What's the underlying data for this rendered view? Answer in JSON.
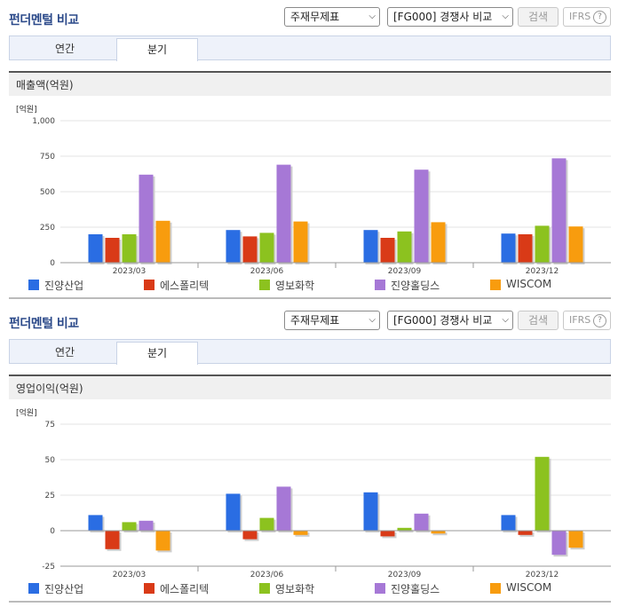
{
  "panels": [
    {
      "title": "펀더멘털 비교",
      "select1": "주재무제표",
      "select2": "[FG000] 경쟁사 비교",
      "search_label": "검색",
      "ifrs_label": "IFRS",
      "tabs": [
        "연간",
        "분기"
      ],
      "active_tab": "분기",
      "subtitle": "매출액(억원)"
    },
    {
      "title": "펀더멘털 비교",
      "select1": "주재무제표",
      "select2": "[FG000] 경쟁사 비교",
      "search_label": "검색",
      "ifrs_label": "IFRS",
      "tabs": [
        "연간",
        "분기"
      ],
      "active_tab": "분기",
      "subtitle": "영업이익(억원)"
    }
  ],
  "colors": {
    "진양산업": "#2a6de3",
    "에스폴리텍": "#d93a17",
    "영보화학": "#8cc21f",
    "진양홀딩스": "#a678d6",
    "WISCOM": "#f89c0e"
  },
  "chart_data": [
    {
      "type": "bar",
      "unit_label": "[억원]",
      "categories": [
        "2023/03",
        "2023/06",
        "2023/09",
        "2023/12"
      ],
      "ylim": [
        0,
        1000
      ],
      "yticks": [
        0,
        250,
        500,
        750,
        1000
      ],
      "ytick_labels": [
        "0",
        "250",
        "500",
        "750",
        "1,000"
      ],
      "legend_position": "bottom",
      "series": [
        {
          "name": "진양산업",
          "values": [
            200,
            230,
            230,
            205
          ]
        },
        {
          "name": "에스폴리텍",
          "values": [
            175,
            185,
            175,
            200
          ]
        },
        {
          "name": "영보화학",
          "values": [
            200,
            210,
            220,
            260
          ]
        },
        {
          "name": "진양홀딩스",
          "values": [
            620,
            690,
            655,
            735
          ]
        },
        {
          "name": "WISCOM",
          "values": [
            295,
            290,
            285,
            255
          ]
        }
      ]
    },
    {
      "type": "bar",
      "unit_label": "[억원]",
      "categories": [
        "2023/03",
        "2023/06",
        "2023/09",
        "2023/12"
      ],
      "ylim": [
        -25,
        75
      ],
      "yticks": [
        -25,
        0,
        25,
        50,
        75
      ],
      "ytick_labels": [
        "-25",
        "0",
        "25",
        "50",
        "75"
      ],
      "legend_position": "bottom",
      "series": [
        {
          "name": "진양산업",
          "values": [
            11,
            26,
            27,
            11
          ]
        },
        {
          "name": "에스폴리텍",
          "values": [
            -13,
            -6,
            -4,
            -3
          ]
        },
        {
          "name": "영보화학",
          "values": [
            6,
            9,
            2,
            52
          ]
        },
        {
          "name": "진양홀딩스",
          "values": [
            7,
            31,
            12,
            -17
          ]
        },
        {
          "name": "WISCOM",
          "values": [
            -14,
            -3,
            -2,
            -12
          ]
        }
      ]
    }
  ]
}
